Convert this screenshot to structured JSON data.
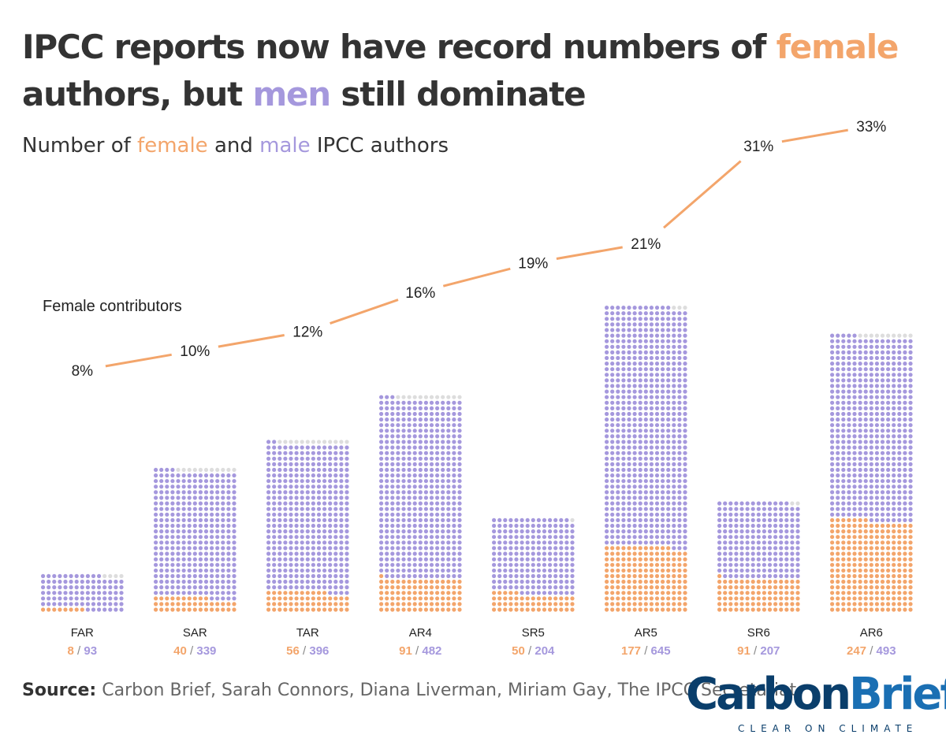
{
  "title": {
    "part1": "IPCC reports now have record numbers of ",
    "female_word": "female",
    "part2": " authors, but ",
    "male_word": "men",
    "part3": " still dominate"
  },
  "subtitle": {
    "part1": "Number of ",
    "female_word": "female",
    "part2": " and ",
    "male_word": "male",
    "part3": " IPCC authors"
  },
  "colors": {
    "female": "#f3a56b",
    "male": "#a598dd",
    "unknown": "#dddddd",
    "line": "#f3a56b"
  },
  "chart_data": {
    "type": "bar",
    "categories": [
      "FAR",
      "SAR",
      "TAR",
      "AR4",
      "SR5",
      "AR5",
      "SR6",
      "AR6"
    ],
    "series": [
      {
        "name": "female",
        "values": [
          8,
          40,
          56,
          91,
          50,
          177,
          91,
          247
        ]
      },
      {
        "name": "male",
        "values": [
          93,
          339,
          396,
          482,
          204,
          645,
          207,
          493
        ]
      }
    ],
    "line": {
      "label": "Female contributors",
      "values": [
        8,
        10,
        12,
        16,
        19,
        21,
        31,
        33
      ],
      "labels": [
        "8%",
        "10%",
        "12%",
        "16%",
        "19%",
        "21%",
        "31%",
        "33%"
      ]
    }
  },
  "source": {
    "label": "Source:",
    "text": "Carbon Brief, Sarah Connors, Diana Liverman, Miriam Gay, The IPCC Secretariat"
  },
  "logo": {
    "part1": "Carbon",
    "part2": "Brief",
    "tagline": "CLEAR ON CLIMATE"
  }
}
